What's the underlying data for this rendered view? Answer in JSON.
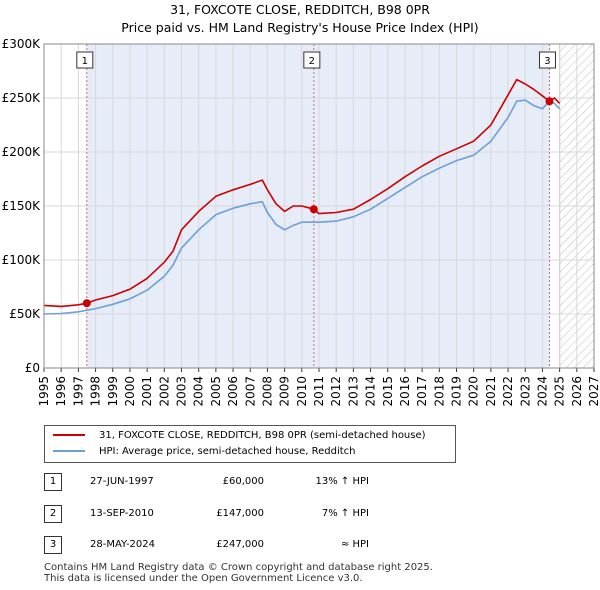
{
  "title": "31, FOXCOTE CLOSE, REDDITCH, B98 0PR",
  "subtitle": "Price paid vs. HM Land Registry's House Price Index (HPI)",
  "colors": {
    "property": "#cc0000",
    "hpi": "#6f9fd8",
    "shade": "#e6ecf8",
    "marker": "#cc0000"
  },
  "chart_data": {
    "type": "line",
    "xlim": [
      1995,
      2027
    ],
    "ylim": [
      0,
      300000
    ],
    "x_ticks": [
      "1995",
      "1996",
      "1997",
      "1998",
      "1999",
      "2000",
      "2001",
      "2002",
      "2003",
      "2004",
      "2005",
      "2006",
      "2007",
      "2008",
      "2009",
      "2010",
      "2011",
      "2012",
      "2013",
      "2014",
      "2015",
      "2016",
      "2017",
      "2018",
      "2019",
      "2020",
      "2021",
      "2022",
      "2023",
      "2024",
      "2025",
      "2026",
      "2027"
    ],
    "y_ticks": [
      {
        "value": 0,
        "label": "£0"
      },
      {
        "value": 50000,
        "label": "£50K"
      },
      {
        "value": 100000,
        "label": "£100K"
      },
      {
        "value": 150000,
        "label": "£150K"
      },
      {
        "value": 200000,
        "label": "£200K"
      },
      {
        "value": 250000,
        "label": "£250K"
      },
      {
        "value": 300000,
        "label": "£300K"
      }
    ],
    "shaded_range": [
      1997.49,
      2024.41
    ],
    "hatched_from": 2025.0,
    "series": [
      {
        "name": "31, FOXCOTE CLOSE, REDDITCH, B98 0PR (semi-detached house)",
        "x": [
          1995,
          1996,
          1997,
          1997.49,
          1998,
          1999,
          2000,
          2001,
          2002,
          2002.5,
          2003,
          2004,
          2005,
          2006,
          2007,
          2007.7,
          2008,
          2008.5,
          2009,
          2009.5,
          2010,
          2010.7,
          2011,
          2012,
          2013,
          2014,
          2015,
          2016,
          2017,
          2018,
          2019,
          2020,
          2021,
          2022,
          2022.5,
          2023,
          2023.5,
          2024,
          2024.41,
          2024.7,
          2025
        ],
        "y": [
          58000,
          57000,
          58500,
          60000,
          63000,
          67000,
          73000,
          83000,
          98000,
          108000,
          128000,
          145000,
          159000,
          165000,
          170000,
          174000,
          165000,
          152000,
          145000,
          150000,
          150000,
          147000,
          143000,
          144000,
          147000,
          156000,
          166000,
          177000,
          187000,
          196000,
          203000,
          210000,
          225000,
          253000,
          267000,
          263000,
          258000,
          252000,
          247000,
          250000,
          245000
        ]
      },
      {
        "name": "HPI: Average price, semi-detached house, Redditch",
        "x": [
          1995,
          1996,
          1997,
          1998,
          1999,
          2000,
          2001,
          2002,
          2002.5,
          2003,
          2004,
          2005,
          2006,
          2007,
          2007.7,
          2008,
          2008.5,
          2009,
          2009.5,
          2010,
          2011,
          2012,
          2013,
          2014,
          2015,
          2016,
          2017,
          2018,
          2019,
          2020,
          2021,
          2022,
          2022.5,
          2023,
          2023.5,
          2024,
          2024.41,
          2024.7,
          2025
        ],
        "y": [
          50000,
          50500,
          52000,
          55000,
          59000,
          64000,
          72000,
          85000,
          95000,
          111000,
          128000,
          142000,
          148000,
          152000,
          154000,
          144000,
          133000,
          128000,
          132000,
          135000,
          135000,
          136000,
          140000,
          147000,
          157000,
          167000,
          177000,
          185000,
          192000,
          197000,
          210000,
          232000,
          247000,
          248000,
          243000,
          240000,
          247000,
          245000,
          240000
        ]
      }
    ]
  },
  "markers": [
    {
      "label": "1",
      "x": 1997.49,
      "y": 60000
    },
    {
      "label": "2",
      "x": 2010.7,
      "y": 147000
    },
    {
      "label": "3",
      "x": 2024.41,
      "y": 247000
    }
  ],
  "legend": {
    "property": "31, FOXCOTE CLOSE, REDDITCH, B98 0PR (semi-detached house)",
    "hpi": "HPI: Average price, semi-detached house, Redditch"
  },
  "transactions": [
    {
      "num": "1",
      "date": "27-JUN-1997",
      "price": "£60,000",
      "hpi": "13% ↑ HPI"
    },
    {
      "num": "2",
      "date": "13-SEP-2010",
      "price": "£147,000",
      "hpi": "7% ↑ HPI"
    },
    {
      "num": "3",
      "date": "28-MAY-2024",
      "price": "£247,000",
      "hpi": "≈ HPI"
    }
  ],
  "footer": {
    "line1": "Contains HM Land Registry data © Crown copyright and database right 2025.",
    "line2": "This data is licensed under the Open Government Licence v3.0."
  }
}
